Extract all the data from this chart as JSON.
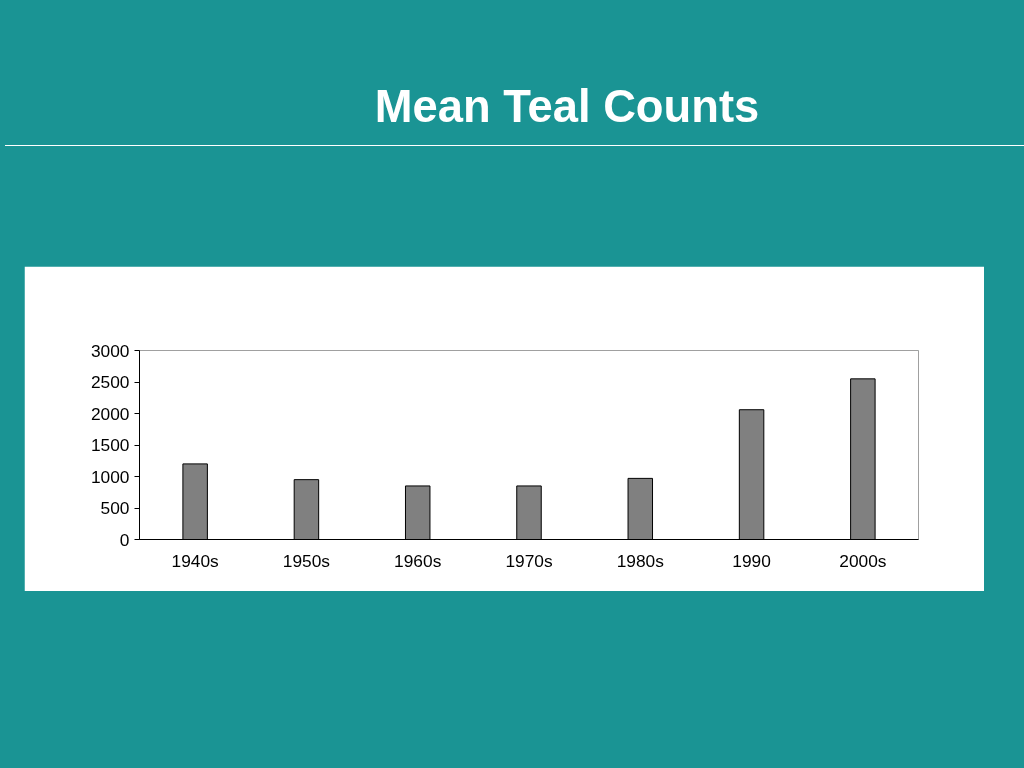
{
  "chart_data": {
    "type": "bar",
    "title": "Mean Teal Counts",
    "categories": [
      "1940s",
      "1950s",
      "1960s",
      "1970s",
      "1980s",
      "1990",
      "2000s"
    ],
    "values": [
      1200,
      950,
      850,
      850,
      970,
      2060,
      2550
    ],
    "color": "#808080",
    "ylim": [
      0,
      3000
    ],
    "yticks": [
      0,
      500,
      1000,
      1500,
      2000,
      2500,
      3000
    ],
    "grid": false
  }
}
